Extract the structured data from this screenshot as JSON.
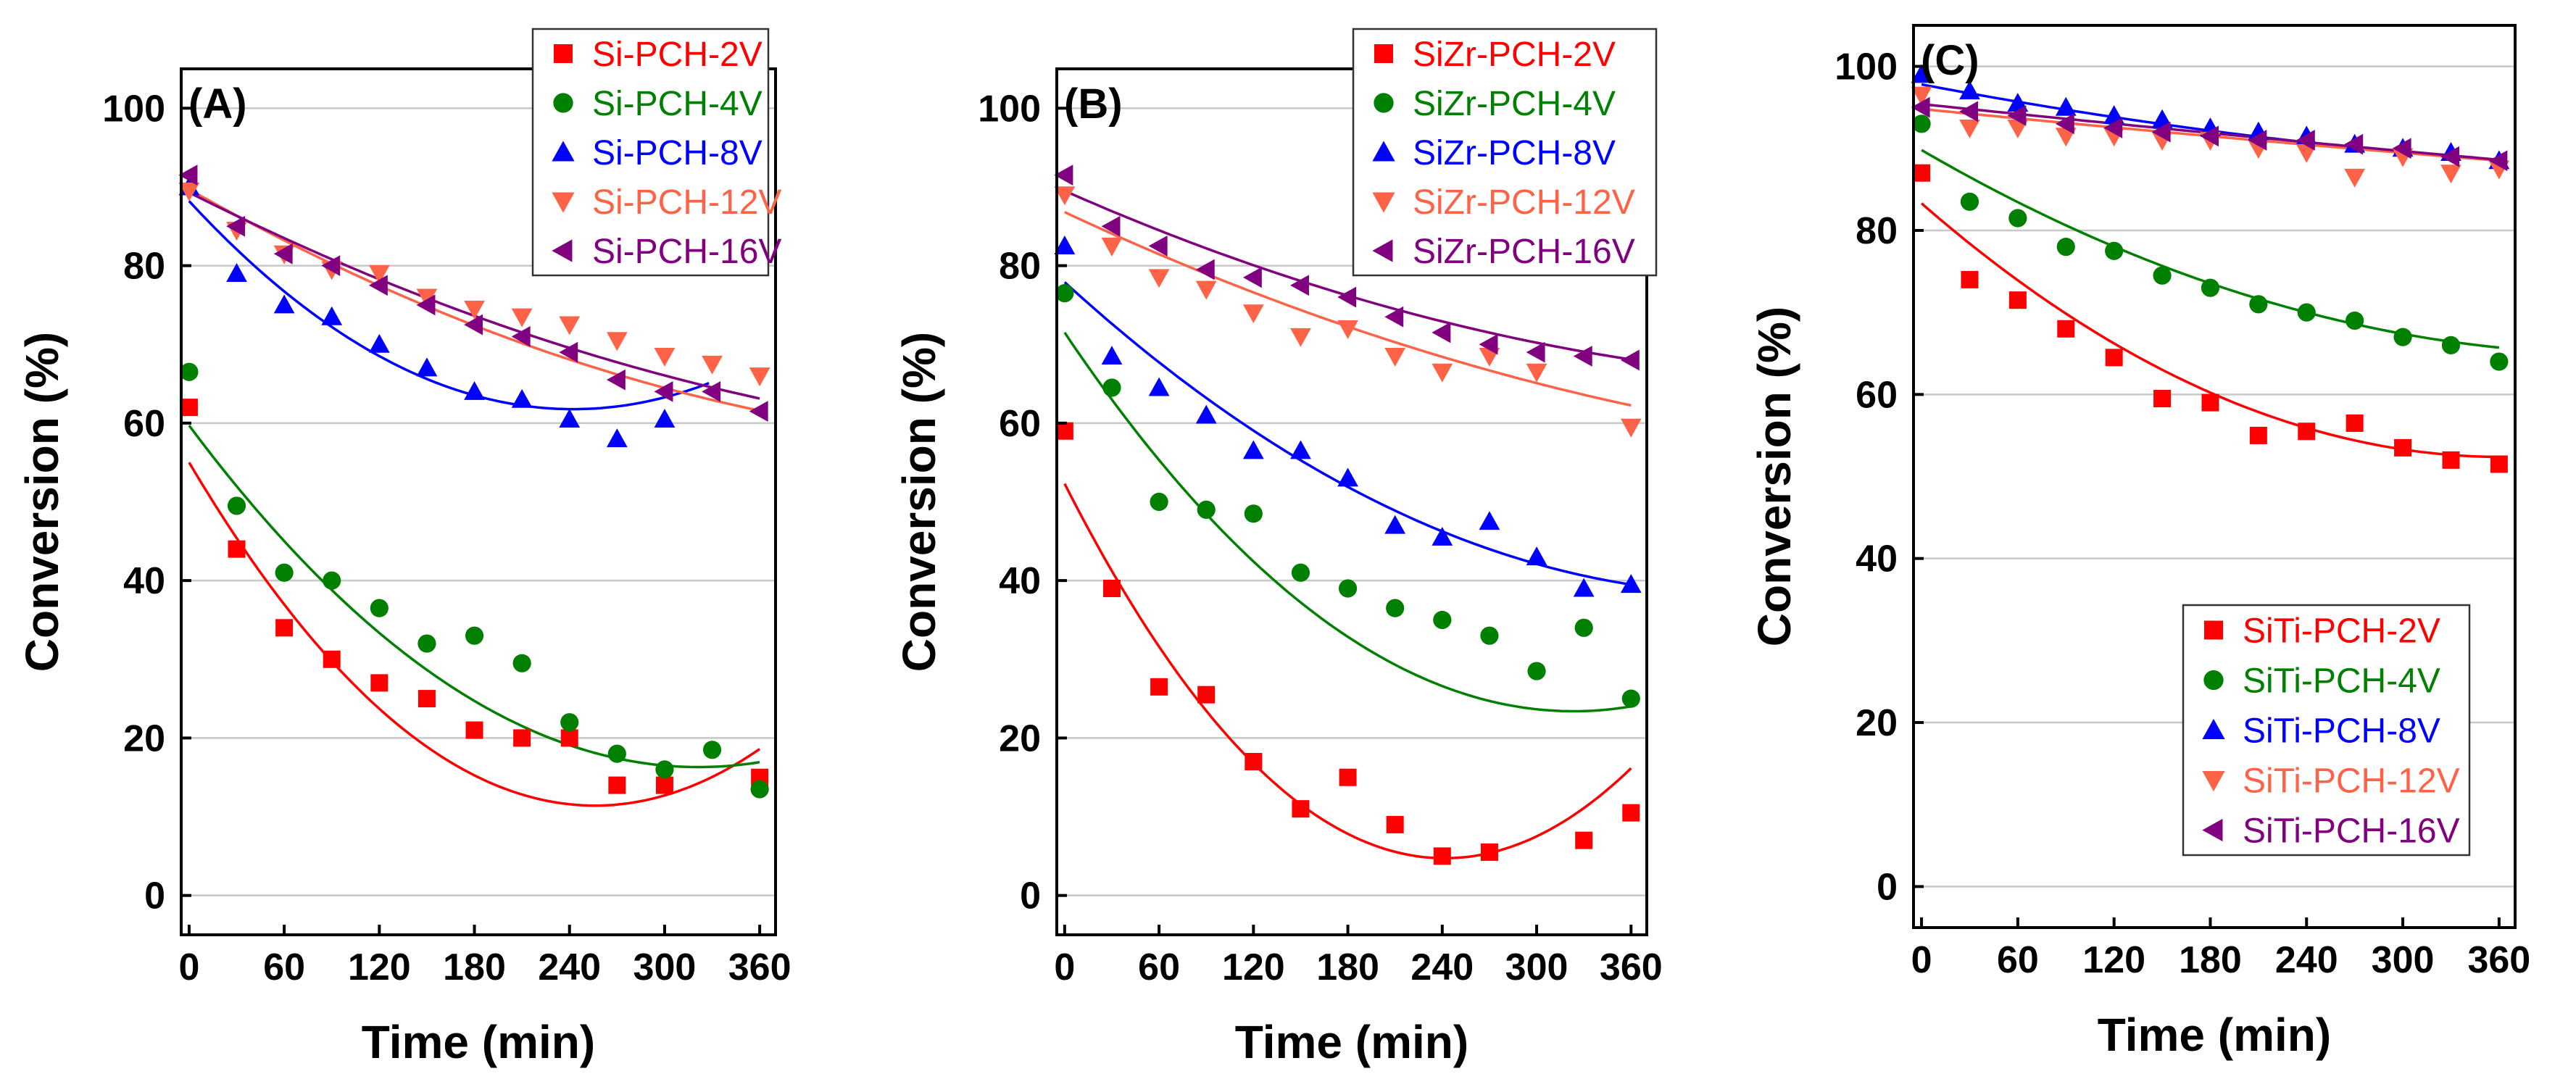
{
  "colors": {
    "2V": "#ff0000",
    "4V": "#008000",
    "8V": "#0000ff",
    "12V": "#ff6347",
    "16V": "#800080",
    "axis": "#000000",
    "grid": "#c8c8c8"
  },
  "chart_data": [
    {
      "type": "scatter",
      "panel_label": "(A)",
      "xlabel": "Time (min)",
      "ylabel": "Conversion (%)",
      "xlim": [
        -5,
        370
      ],
      "ylim": [
        -5,
        105
      ],
      "xticks": [
        0,
        60,
        120,
        180,
        240,
        300,
        360
      ],
      "yticks": [
        0,
        20,
        40,
        60,
        80,
        100
      ],
      "grid": "horizontal",
      "legend_position": "top-right",
      "series": [
        {
          "name": "Si-PCH-2V",
          "key": "2V",
          "marker": "square",
          "x": [
            0,
            30,
            60,
            90,
            120,
            150,
            180,
            210,
            240,
            270,
            300,
            360
          ],
          "y": [
            62,
            44,
            34,
            30,
            27,
            25,
            21,
            20,
            20,
            14,
            14,
            15
          ],
          "fit": [
            55,
            -0.3405,
            0.000665
          ],
          "fit_range": [
            0,
            360
          ]
        },
        {
          "name": "Si-PCH-4V",
          "key": "4V",
          "marker": "circle",
          "x": [
            0,
            30,
            60,
            90,
            120,
            150,
            180,
            210,
            240,
            270,
            300,
            330,
            360
          ],
          "y": [
            66.5,
            49.5,
            41,
            40,
            36.5,
            32,
            33,
            29.5,
            22,
            18,
            16,
            18.5,
            13.5
          ],
          "fit": [
            59.7,
            -0.27,
            0.00042
          ],
          "fit_range": [
            0,
            360
          ]
        },
        {
          "name": "Si-PCH-8V",
          "key": "8V",
          "marker": "triangle-up",
          "x": [
            0,
            30,
            60,
            90,
            120,
            150,
            180,
            210,
            240,
            270,
            300
          ],
          "y": [
            90,
            79,
            75,
            73.5,
            70,
            67,
            64,
            63,
            60.5,
            58,
            60.5
          ],
          "fit": [
            88.2,
            -0.2181,
            0.00045
          ],
          "fit_range": [
            0,
            330
          ]
        },
        {
          "name": "Si-PCH-12V",
          "key": "12V",
          "marker": "triangle-down",
          "x": [
            0,
            30,
            60,
            90,
            120,
            150,
            180,
            210,
            240,
            270,
            300,
            330,
            360
          ],
          "y": [
            89.5,
            84.5,
            81.5,
            79.5,
            79,
            76,
            74.5,
            73.5,
            72.5,
            70.5,
            68.5,
            67.5,
            66
          ],
          "fit": [
            89.7,
            -0.1141,
            0.0001
          ],
          "fit_range": [
            0,
            360
          ]
        },
        {
          "name": "Si-PCH-16V",
          "key": "16V",
          "marker": "triangle-left",
          "x": [
            0,
            30,
            60,
            90,
            120,
            150,
            180,
            210,
            240,
            270,
            300,
            330,
            360
          ],
          "y": [
            91.5,
            85,
            81.5,
            80,
            77.5,
            75,
            72.5,
            71,
            69,
            65.5,
            64,
            64,
            61.5
          ],
          "fit": [
            89.3,
            -0.1015,
            8e-05
          ],
          "fit_range": [
            0,
            360
          ]
        }
      ]
    },
    {
      "type": "scatter",
      "panel_label": "(B)",
      "xlabel": "Time (min)",
      "ylabel": "Conversion (%)",
      "xlim": [
        -5,
        370
      ],
      "ylim": [
        -5,
        105
      ],
      "xticks": [
        0,
        60,
        120,
        180,
        240,
        300,
        360
      ],
      "yticks": [
        0,
        20,
        40,
        60,
        80,
        100
      ],
      "grid": "horizontal",
      "legend_position": "top-right",
      "series": [
        {
          "name": "SiZr-PCH-2V",
          "key": "2V",
          "marker": "square",
          "x": [
            0,
            30,
            60,
            90,
            120,
            150,
            180,
            210,
            240,
            270,
            330,
            360
          ],
          "y": [
            59,
            39,
            26.5,
            25.5,
            17,
            11,
            15,
            9,
            5,
            5.5,
            7,
            10.5
          ],
          "fit": [
            52.3,
            -0.3938,
            0.000815
          ],
          "fit_range": [
            0,
            360
          ]
        },
        {
          "name": "SiZr-PCH-4V",
          "key": "4V",
          "marker": "circle",
          "x": [
            0,
            30,
            60,
            90,
            120,
            150,
            180,
            210,
            240,
            270,
            300,
            330,
            360
          ],
          "y": [
            76.5,
            64.5,
            50,
            49,
            48.5,
            41,
            39,
            36.5,
            35,
            33,
            28.5,
            34,
            25
          ],
          "fit": [
            71.5,
            -0.2975,
            0.00046
          ],
          "fit_range": [
            0,
            360
          ]
        },
        {
          "name": "SiZr-PCH-8V",
          "key": "8V",
          "marker": "triangle-up",
          "x": [
            0,
            30,
            60,
            90,
            120,
            150,
            180,
            210,
            240,
            270,
            300,
            330,
            360
          ],
          "y": [
            82.5,
            68.5,
            64.5,
            61,
            56.5,
            56.5,
            53,
            47,
            45.5,
            47.5,
            43,
            39,
            39.5
          ],
          "fit": [
            77.9,
            -0.1823,
            0.00021
          ],
          "fit_range": [
            0,
            360
          ]
        },
        {
          "name": "SiZr-PCH-12V",
          "key": "12V",
          "marker": "triangle-down",
          "x": [
            0,
            30,
            60,
            90,
            120,
            150,
            180,
            210,
            240,
            270,
            300,
            360
          ],
          "y": [
            89,
            82.5,
            78.5,
            77,
            74,
            71,
            72,
            68.5,
            66.5,
            68.5,
            66.5,
            59.5
          ],
          "fit": [
            86.8,
            -0.0934,
            7e-05
          ],
          "fit_range": [
            0,
            360
          ]
        },
        {
          "name": "SiZr-PCH-16V",
          "key": "16V",
          "marker": "triangle-left",
          "x": [
            0,
            30,
            60,
            90,
            120,
            150,
            180,
            210,
            240,
            270,
            300,
            330,
            360
          ],
          "y": [
            91.5,
            85,
            82.5,
            79.5,
            78.5,
            77.5,
            76,
            73.5,
            71.5,
            70,
            69,
            68.5,
            68
          ],
          "fit": [
            89.5,
            -0.0883,
            8e-05
          ],
          "fit_range": [
            0,
            360
          ]
        }
      ]
    },
    {
      "type": "scatter",
      "panel_label": "(C)",
      "xlabel": "Time (min)",
      "ylabel": "Conversion (%)",
      "xlim": [
        -5,
        370
      ],
      "ylim": [
        -5,
        105
      ],
      "xticks": [
        0,
        60,
        120,
        180,
        240,
        300,
        360
      ],
      "yticks": [
        0,
        20,
        40,
        60,
        80,
        100
      ],
      "grid": "horizontal",
      "legend_position": "bottom-right",
      "series": [
        {
          "name": "SiTi-PCH-2V",
          "key": "2V",
          "marker": "square",
          "x": [
            0,
            30,
            60,
            90,
            120,
            150,
            180,
            210,
            240,
            270,
            300,
            330,
            360
          ],
          "y": [
            87,
            74,
            71.5,
            68,
            64.5,
            59.5,
            59,
            55,
            55.5,
            56.5,
            53.5,
            52,
            51.5
          ],
          "fit": [
            83.3,
            -0.1705,
            0.000235
          ],
          "fit_range": [
            0,
            360
          ]
        },
        {
          "name": "SiTi-PCH-4V",
          "key": "4V",
          "marker": "circle",
          "x": [
            0,
            30,
            60,
            90,
            120,
            150,
            180,
            210,
            240,
            270,
            300,
            330,
            360
          ],
          "y": [
            93,
            83.5,
            81.5,
            78,
            77.5,
            74.5,
            73,
            71,
            70,
            69,
            67,
            66,
            64
          ],
          "fit": [
            89.8,
            -0.1137,
            0.00013
          ],
          "fit_range": [
            0,
            360
          ]
        },
        {
          "name": "SiTi-PCH-8V",
          "key": "8V",
          "marker": "triangle-up",
          "x": [
            0,
            30,
            60,
            90,
            120,
            150,
            180,
            210,
            240,
            270,
            300,
            330,
            360
          ],
          "y": [
            99,
            97,
            95.5,
            95,
            94,
            93.5,
            92.5,
            92,
            91.5,
            90.5,
            90,
            89.5,
            88.5
          ],
          "fit": [
            97.8,
            -0.0371,
            3.2e-05
          ],
          "fit_range": [
            0,
            360
          ]
        },
        {
          "name": "SiTi-PCH-12V",
          "key": "12V",
          "marker": "triangle-down",
          "x": [
            0,
            30,
            60,
            90,
            120,
            150,
            180,
            210,
            240,
            270,
            300,
            330,
            360
          ],
          "y": [
            96.5,
            92.5,
            92.5,
            91.5,
            91.5,
            91,
            91,
            90,
            89.5,
            86.5,
            89,
            87,
            87.5
          ],
          "fit": [
            94.8,
            -0.0193,
            5e-06
          ],
          "fit_range": [
            0,
            360
          ]
        },
        {
          "name": "SiTi-PCH-16V",
          "key": "16V",
          "marker": "triangle-left",
          "x": [
            0,
            30,
            60,
            90,
            120,
            150,
            180,
            210,
            240,
            270,
            300,
            330,
            360
          ],
          "y": [
            95,
            94.5,
            94,
            93,
            92.5,
            92,
            91.5,
            91,
            91,
            90.5,
            90,
            89,
            88.5
          ],
          "fit": [
            95.4,
            -0.0203,
            4e-06
          ],
          "fit_range": [
            0,
            360
          ]
        }
      ]
    }
  ]
}
